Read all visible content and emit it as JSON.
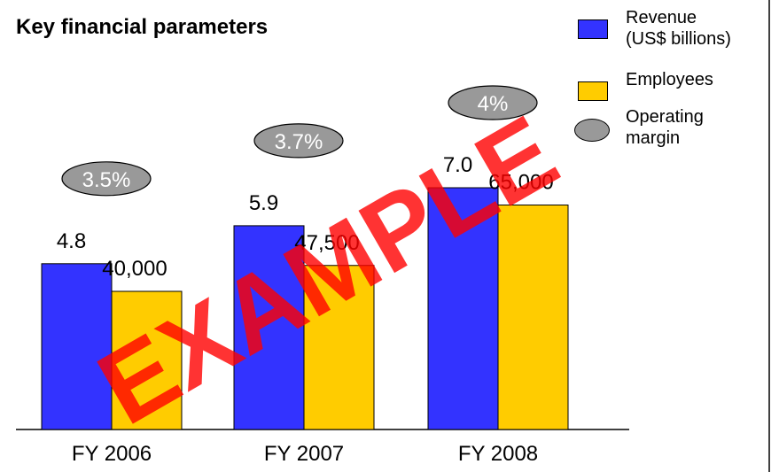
{
  "chart_data": {
    "type": "bar",
    "title": "Key financial parameters",
    "watermark": "EXAMPLE",
    "categories": [
      "FY 2006",
      "FY 2007",
      "FY 2008"
    ],
    "ylim": [
      0,
      10
    ],
    "y2lim": [
      0,
      100000
    ],
    "legend": "top-right",
    "series": [
      {
        "name": "Revenue (US$ billions)",
        "color": "#3333ff",
        "values": [
          4.8,
          5.9,
          7.0
        ],
        "value_labels": [
          "4.8",
          "5.9",
          "7.0"
        ]
      },
      {
        "name": "Employees",
        "color": "#ffcc00",
        "axis": "y2",
        "values": [
          40000,
          47500,
          65000
        ],
        "value_labels": [
          "40,000",
          "47,500",
          "65,000"
        ]
      },
      {
        "name": "Operating margin",
        "color": "#999999",
        "values": [
          3.5,
          3.7,
          4
        ],
        "value_labels": [
          "3.5%",
          "3.7%",
          "4%"
        ]
      }
    ]
  }
}
